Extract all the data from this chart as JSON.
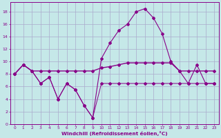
{
  "xlabel": "Windchill (Refroidissement éolien,°C)",
  "bg_color": "#c5e8e8",
  "grid_color": "#aaaacc",
  "line_color": "#880088",
  "line_color2": "#990099",
  "xlim": [
    -0.5,
    23.5
  ],
  "ylim": [
    0,
    19.5
  ],
  "yticks": [
    0,
    2,
    4,
    6,
    8,
    10,
    12,
    14,
    16,
    18
  ],
  "xticks": [
    0,
    1,
    2,
    3,
    4,
    5,
    6,
    7,
    8,
    9,
    10,
    11,
    12,
    13,
    14,
    15,
    16,
    17,
    18,
    19,
    20,
    21,
    22,
    23
  ],
  "s1_x": [
    0,
    1,
    2,
    3,
    4,
    5,
    6,
    7,
    8,
    9,
    10,
    11,
    12,
    13,
    14,
    15,
    16,
    17,
    18,
    19,
    20,
    21,
    22,
    23
  ],
  "s1_y": [
    8,
    9.5,
    8.5,
    6.5,
    7.5,
    4,
    6.5,
    5.5,
    3,
    1,
    10.5,
    13,
    15,
    16,
    18,
    18.5,
    17,
    14.5,
    10,
    8.5,
    6.5,
    9.5,
    6.5,
    6.5
  ],
  "s2_x": [
    0,
    1,
    2,
    3,
    4,
    5,
    6,
    7,
    8,
    9,
    10,
    11,
    12,
    13,
    14,
    15,
    16,
    17,
    18,
    19,
    20,
    21,
    22,
    23
  ],
  "s2_y": [
    8,
    9.5,
    8.5,
    8.5,
    8.5,
    8.5,
    8.5,
    8.5,
    8.5,
    8.5,
    9.0,
    9.2,
    9.5,
    9.8,
    9.8,
    9.8,
    9.8,
    9.8,
    9.8,
    8.5,
    8.5,
    8.5,
    8.5,
    8.5
  ],
  "s3_x": [
    0,
    1,
    2,
    3,
    4,
    5,
    6,
    7,
    8,
    9,
    10,
    11,
    12,
    13,
    14,
    15,
    16,
    17,
    18,
    19,
    20,
    21,
    22,
    23
  ],
  "s3_y": [
    8,
    9.5,
    8.5,
    6.5,
    7.5,
    4,
    6.5,
    5.5,
    3,
    1,
    6.5,
    6.5,
    6.5,
    6.5,
    6.5,
    6.5,
    6.5,
    6.5,
    6.5,
    6.5,
    6.5,
    6.5,
    6.5,
    6.5
  ]
}
